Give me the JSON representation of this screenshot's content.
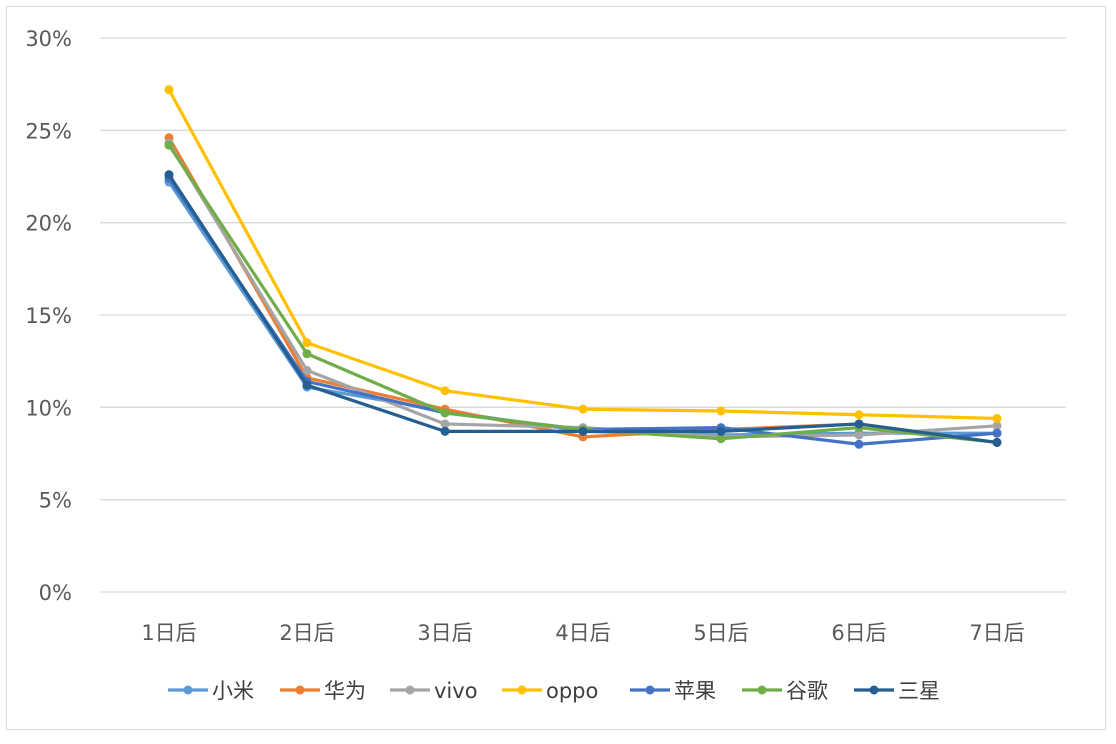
{
  "chart_data": {
    "type": "line",
    "title": "",
    "xlabel": "",
    "ylabel": "",
    "categories": [
      "1日后",
      "2日后",
      "3日后",
      "4日后",
      "5日后",
      "6日后",
      "7日后"
    ],
    "ylim": [
      0,
      30
    ],
    "yticks": [
      0,
      5,
      10,
      15,
      20,
      25,
      30
    ],
    "ytick_labels": [
      "0%",
      "5%",
      "10%",
      "15%",
      "20%",
      "25%",
      "30%"
    ],
    "grid": true,
    "legend_position": "bottom",
    "series": [
      {
        "name": "小米",
        "color": "#5b9bd5",
        "values": [
          22.2,
          11.1,
          9.8,
          8.7,
          8.5,
          8.6,
          8.6
        ]
      },
      {
        "name": "华为",
        "color": "#ed7d31",
        "values": [
          24.6,
          11.6,
          9.9,
          8.4,
          8.8,
          9.1,
          8.1
        ]
      },
      {
        "name": "vivo",
        "color": "#a5a5a5",
        "values": [
          24.3,
          12.0,
          9.1,
          8.9,
          8.4,
          8.5,
          9.0
        ]
      },
      {
        "name": "oppo",
        "color": "#ffc000",
        "values": [
          27.2,
          13.5,
          10.9,
          9.9,
          9.8,
          9.6,
          9.4
        ]
      },
      {
        "name": "苹果",
        "color": "#4472c4",
        "values": [
          22.4,
          11.4,
          9.7,
          8.8,
          8.9,
          8.0,
          8.6
        ]
      },
      {
        "name": "谷歌",
        "color": "#70ad47",
        "values": [
          24.2,
          12.9,
          9.7,
          8.8,
          8.3,
          8.9,
          8.1
        ]
      },
      {
        "name": "三星",
        "color": "#255e91",
        "values": [
          22.6,
          11.2,
          8.7,
          8.7,
          8.7,
          9.1,
          8.1
        ]
      }
    ]
  }
}
